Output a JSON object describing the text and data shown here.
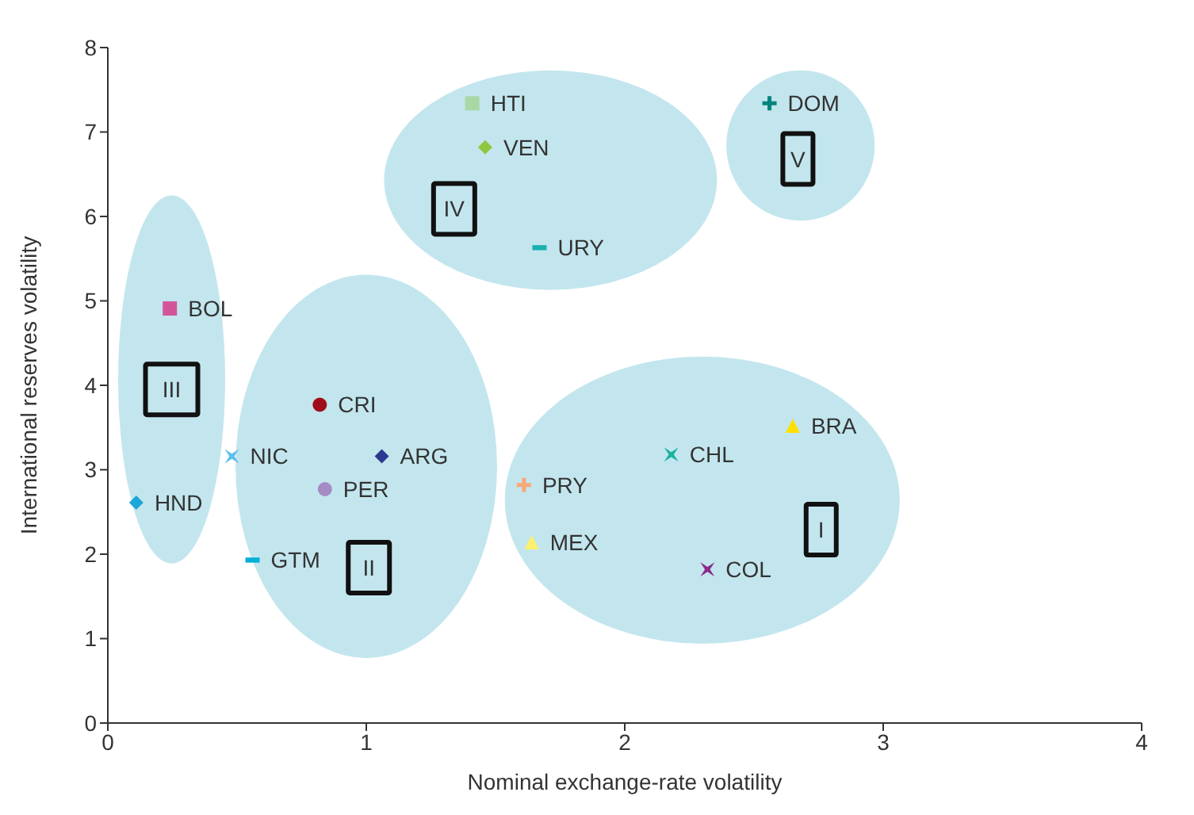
{
  "chart_data": {
    "type": "scatter",
    "xlabel": "Nominal exchange-rate volatility",
    "ylabel": "International reserves volatility",
    "xlim": [
      0,
      4
    ],
    "xticks": [
      0,
      1,
      2,
      3,
      4
    ],
    "ylim": [
      0,
      8
    ],
    "yticks": [
      0,
      1,
      2,
      3,
      4,
      5,
      6,
      7,
      8
    ],
    "grid": false,
    "legend": false,
    "series": [
      {
        "name": "HTI",
        "color": "#a9d8a5",
        "marker": "square",
        "x": [
          1.41
        ],
        "values": [
          7.34
        ]
      },
      {
        "name": "VEN",
        "color": "#8dc63f",
        "marker": "diamond",
        "x": [
          1.46
        ],
        "values": [
          6.82
        ]
      },
      {
        "name": "URY",
        "color": "#1ab0b0",
        "x": [
          1.67
        ],
        "values": [
          5.63
        ]
      },
      {
        "name": "DOM",
        "color": "#00857c",
        "marker": "cross",
        "x": [
          2.56
        ],
        "values": [
          7.34
        ]
      },
      {
        "name": "BOL",
        "color": "#d2559a",
        "marker": "square",
        "x": [
          0.24
        ],
        "values": [
          4.91
        ]
      },
      {
        "name": "CRI",
        "color": "#a00d1a",
        "marker": "circle",
        "x": [
          0.82
        ],
        "values": [
          3.77
        ]
      },
      {
        "name": "NIC",
        "color": "#5bc0eb",
        "marker": "star",
        "x": [
          0.48
        ],
        "values": [
          3.16
        ]
      },
      {
        "name": "ARG",
        "color": "#2b3990",
        "marker": "diamond",
        "x": [
          1.06
        ],
        "values": [
          3.16
        ]
      },
      {
        "name": "PER",
        "color": "#a58bc4",
        "marker": "circle",
        "x": [
          0.84
        ],
        "values": [
          2.77
        ]
      },
      {
        "name": "HND",
        "color": "#1ca7d6",
        "marker": "diamond",
        "x": [
          0.11
        ],
        "values": [
          2.61
        ]
      },
      {
        "name": "GTM",
        "color": "#00b0d8",
        "x": [
          0.56
        ],
        "values": [
          1.93
        ]
      },
      {
        "name": "PRY",
        "color": "#f7a878",
        "marker": "cross",
        "x": [
          1.61
        ],
        "values": [
          2.82
        ]
      },
      {
        "name": "MEX",
        "color": "#fff06e",
        "marker": "triangle",
        "x": [
          1.64
        ],
        "values": [
          2.14
        ]
      },
      {
        "name": "CHL",
        "color": "#1ab2a0",
        "marker": "star",
        "x": [
          2.18
        ],
        "values": [
          3.18
        ]
      },
      {
        "name": "BRA",
        "color": "#ffe000",
        "marker": "triangle",
        "x": [
          2.65
        ],
        "values": [
          3.52
        ]
      },
      {
        "name": "COL",
        "color": "#8b2b8b",
        "marker": "star",
        "x": [
          2.32
        ],
        "values": [
          1.82
        ]
      }
    ],
    "annotations": [
      {
        "text": "I",
        "x": 2.76,
        "y": 2.29
      },
      {
        "text": "II",
        "x": 1.01,
        "y": 1.84
      },
      {
        "text": "III",
        "x": 0.247,
        "y": 3.95
      },
      {
        "text": "IV",
        "x": 1.34,
        "y": 6.09
      },
      {
        "text": "V",
        "x": 2.67,
        "y": 6.68
      }
    ]
  }
}
